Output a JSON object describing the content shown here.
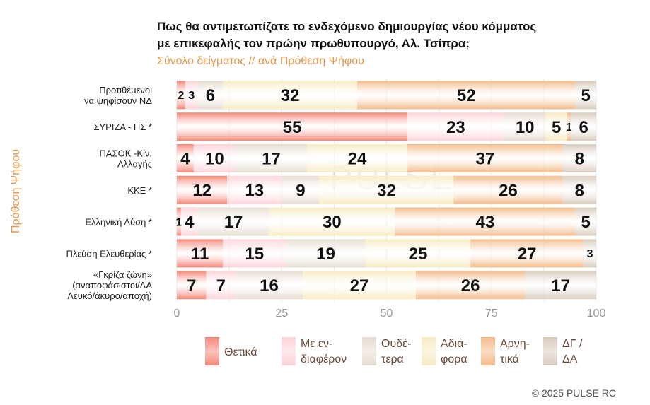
{
  "title_line1": "Πως θα αντιμετωπίζατε το ενδεχόμενο δημιουργίας νέου κόμματος",
  "title_line2": "με επικεφαλής τον πρώην πρωθυπουργό, Αλ. Τσίπρα;",
  "subtitle": "Σύνολο δείγματος // ανά Πρόθεση Ψήφου",
  "copyright": "©  2025  PULSE RC",
  "watermark": "PULSE",
  "chart_data": {
    "type": "bar",
    "orientation": "horizontal",
    "stacked": true,
    "ylabel": "Πρόθεση Ψήφου",
    "xlim": [
      0,
      100
    ],
    "xticks": [
      "0",
      "25",
      "50",
      "75",
      "100"
    ],
    "grid": true,
    "legend_placement": "bottom",
    "categories": [
      [
        "Προτιθέμενοι",
        "να ψηφίσουν ΝΔ"
      ],
      [
        "ΣΥΡΙΖΑ - ΠΣ *"
      ],
      [
        "ΠΑΣΟΚ -Κίν.",
        "Αλλαγής"
      ],
      [
        "ΚΚΕ *"
      ],
      [
        "Ελληνική Λύση *"
      ],
      [
        "Πλεύση Ελευθερίας *"
      ],
      [
        "«Γκρίζα ζώνη»",
        "(αναποφάσιστοι/ΔΑ",
        "Λευκό/άκυρο/αποχή)"
      ]
    ],
    "series": [
      {
        "name": "Θετικά",
        "legend_lines": [
          "Θετικά"
        ],
        "color": "#f4877a",
        "values": [
          2,
          55,
          4,
          12,
          1,
          11,
          7
        ]
      },
      {
        "name": "Με ενδιαφέρον",
        "legend_lines": [
          "Με εν-",
          "διαφέρον"
        ],
        "color": "#fdd3d8",
        "values": [
          3,
          23,
          10,
          13,
          4,
          15,
          7
        ]
      },
      {
        "name": "Ουδέτερα",
        "legend_lines": [
          "Ουδέ-",
          "τερα"
        ],
        "color": "#e6ddd0",
        "values": [
          6,
          10,
          17,
          9,
          17,
          19,
          16
        ]
      },
      {
        "name": "Αδιάφορα",
        "legend_lines": [
          "Αδιά-",
          "φορα"
        ],
        "color": "#f8ecc4",
        "values": [
          32,
          5,
          24,
          32,
          30,
          25,
          27
        ]
      },
      {
        "name": "Αρνητικά",
        "legend_lines": [
          "Αρνη-",
          "τικά"
        ],
        "color": "#f3bb8a",
        "values": [
          52,
          1,
          37,
          26,
          43,
          27,
          26
        ]
      },
      {
        "name": "ΔΓ / ΔΑ",
        "legend_lines": [
          "ΔΓ /",
          "ΔΑ"
        ],
        "color": "#d8cbbd",
        "values": [
          5,
          6,
          8,
          8,
          5,
          3,
          17
        ]
      }
    ]
  }
}
